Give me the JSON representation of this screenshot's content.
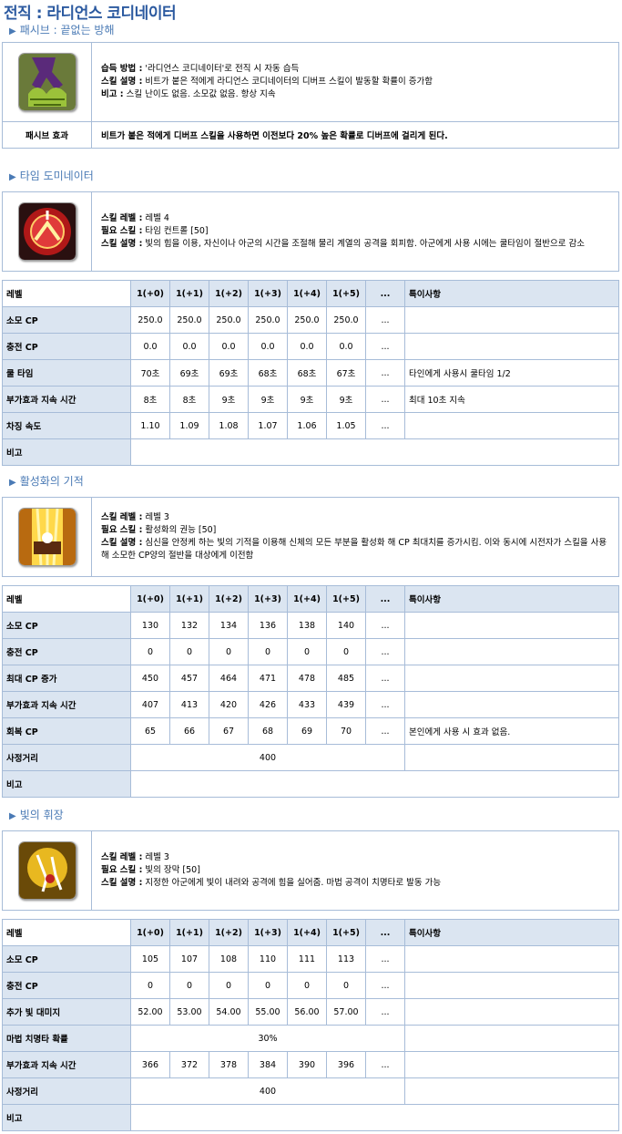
{
  "title": "전직 : 라디언스 코디네이터",
  "passive": {
    "heading": "패시브 : 끝없는 방해",
    "lines": [
      {
        "key": "습득 방법 :",
        "val": " '라디언스 코디네이터'로 전직 시 자동 습득"
      },
      {
        "key": "스킬 설명 :",
        "val": " 비트가 붙은 적에게 라디언스 코디네이터의 디버프 스킬이 발동할 확률이 증가함"
      },
      {
        "key": "비고 :",
        "val": " 스킬 난이도 없음. 소모값 없음. 항상 지속"
      }
    ],
    "effect_label": "패시브 효과",
    "effect_text": "비트가 붙은 적에게 디버프 스킬을 사용하면 이전보다 20% 높은 확률로 디버프에 걸리게 된다."
  },
  "columns": [
    "레벨",
    "1(+0)",
    "1(+1)",
    "1(+2)",
    "1(+3)",
    "1(+4)",
    "1(+5)",
    "...",
    "특이사항"
  ],
  "skills": [
    {
      "heading": "타임 도미네이터",
      "lines": [
        {
          "key": "스킬 레벨 :",
          "val": " 레벨 4"
        },
        {
          "key": "필요 스킬 :",
          "val": " 타임 컨트롤 [50]"
        },
        {
          "key": "스킬 설명 :",
          "val": " 빛의 힘을 이용, 자신이나 아군의 시간을 조절해 물리 계열의 공격을 회피함. 아군에게 사용 시에는 쿨타임이 절반으로 감소"
        }
      ],
      "rows": [
        {
          "label": "소모 CP",
          "values": [
            "250.0",
            "250.0",
            "250.0",
            "250.0",
            "250.0",
            "250.0",
            "..."
          ],
          "note": ""
        },
        {
          "label": "충전 CP",
          "values": [
            "0.0",
            "0.0",
            "0.0",
            "0.0",
            "0.0",
            "0.0",
            "..."
          ],
          "note": ""
        },
        {
          "label": "쿨 타임",
          "values": [
            "70초",
            "69초",
            "69초",
            "68초",
            "68초",
            "67초",
            "..."
          ],
          "note": "타인에게 사용시 쿨타임 1/2"
        },
        {
          "label": "부가효과 지속 시간",
          "values": [
            "8초",
            "8초",
            "9초",
            "9초",
            "9초",
            "9초",
            "..."
          ],
          "note": "최대 10초 지속"
        },
        {
          "label": "차징 속도",
          "values": [
            "1.10",
            "1.09",
            "1.08",
            "1.07",
            "1.06",
            "1.05",
            "..."
          ],
          "note": ""
        }
      ],
      "remark_label": "비고"
    },
    {
      "heading": "활성화의 기적",
      "lines": [
        {
          "key": "스킬 레벨 :",
          "val": " 레벨 3"
        },
        {
          "key": "필요 스킬 :",
          "val": " 활성화의 권능 [50]"
        },
        {
          "key": "스킬 설명 :",
          "val": " 심신을 안정케 하는 빛의 기적을 이용해 신체의 모든 부분을 활성화 해 CP 최대치를 증가시킴. 이와 동시에 시전자가 스킬을 사용해 소모한 CP양의 절반을 대상에게 이전함"
        }
      ],
      "rows": [
        {
          "label": "소모 CP",
          "values": [
            "130",
            "132",
            "134",
            "136",
            "138",
            "140",
            "..."
          ],
          "note": ""
        },
        {
          "label": "충전 CP",
          "values": [
            "0",
            "0",
            "0",
            "0",
            "0",
            "0",
            "..."
          ],
          "note": ""
        },
        {
          "label": "최대 CP 증가",
          "values": [
            "450",
            "457",
            "464",
            "471",
            "478",
            "485",
            "..."
          ],
          "note": ""
        },
        {
          "label": "부가효과 지속 시간",
          "values": [
            "407",
            "413",
            "420",
            "426",
            "433",
            "439",
            "..."
          ],
          "note": ""
        },
        {
          "label": "회복 CP",
          "values": [
            "65",
            "66",
            "67",
            "68",
            "69",
            "70",
            "..."
          ],
          "note": "본인에게 사용 시 효과 없음."
        }
      ],
      "range_row": {
        "label": "사정거리",
        "value": "400"
      },
      "remark_label": "비고"
    },
    {
      "heading": "빛의 휘장",
      "lines": [
        {
          "key": "스킬 레벨 :",
          "val": " 레벨 3"
        },
        {
          "key": "필요 스킬 :",
          "val": " 빛의 장막 [50]"
        },
        {
          "key": "스킬 설명 :",
          "val": " 지정한 아군에게 빛이 내려와 공격에 힘을 실어줌. 마법 공격이 치명타로 발동 가능"
        }
      ],
      "rows": [
        {
          "label": "소모 CP",
          "values": [
            "105",
            "107",
            "108",
            "110",
            "111",
            "113",
            "..."
          ],
          "note": ""
        },
        {
          "label": "충전 CP",
          "values": [
            "0",
            "0",
            "0",
            "0",
            "0",
            "0",
            "..."
          ],
          "note": ""
        },
        {
          "label": "추가 빛 대미지",
          "values": [
            "52.00",
            "53.00",
            "54.00",
            "55.00",
            "56.00",
            "57.00",
            "..."
          ],
          "note": ""
        }
      ],
      "crit_row": {
        "label": "마법 치명타 확률",
        "value": "30%"
      },
      "rows2": [
        {
          "label": "부가효과 지속 시간",
          "values": [
            "366",
            "372",
            "378",
            "384",
            "390",
            "396",
            "..."
          ],
          "note": ""
        }
      ],
      "range_row": {
        "label": "사정거리",
        "value": "400"
      },
      "remark_label": "비고"
    }
  ]
}
